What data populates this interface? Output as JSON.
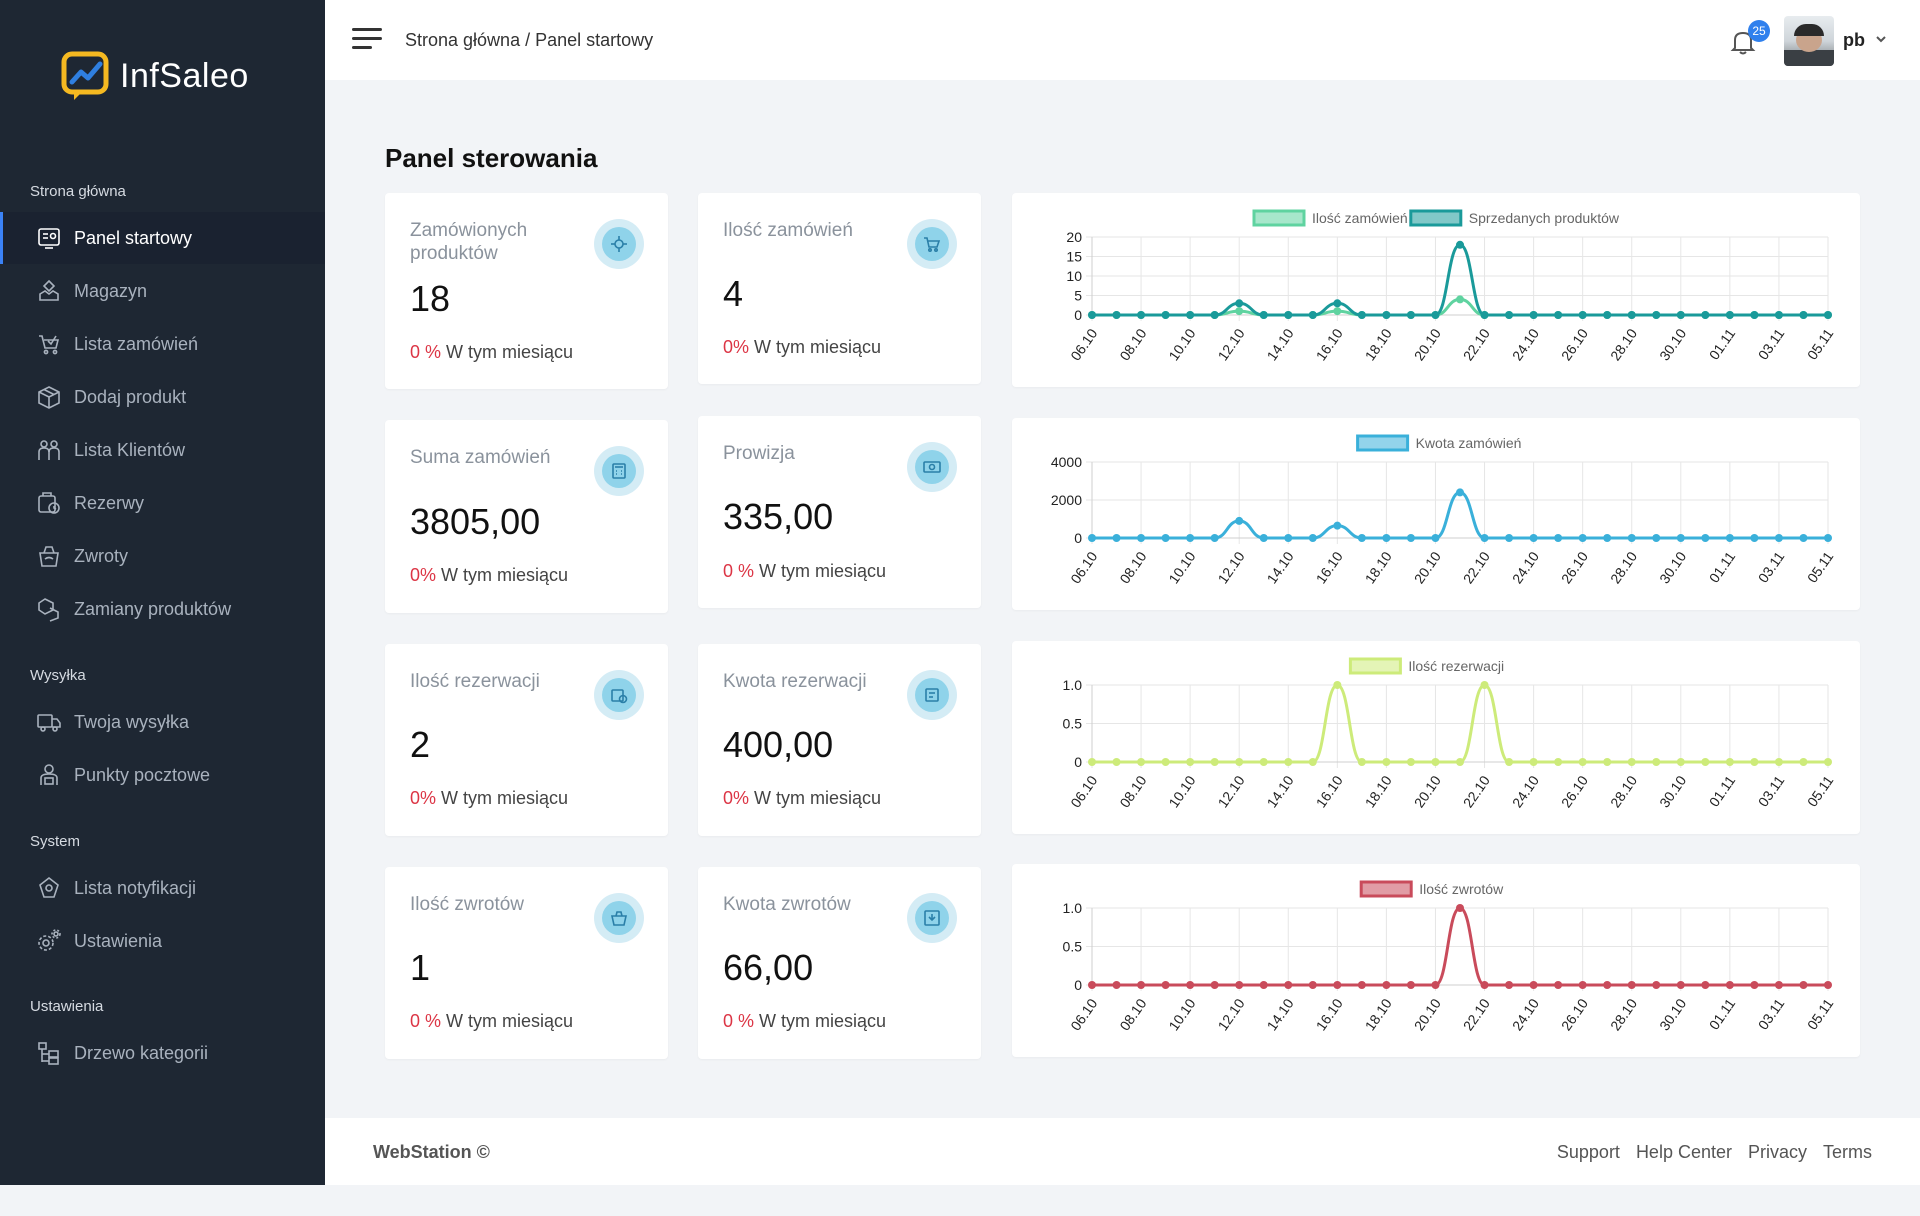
{
  "app": {
    "name": "InfSaleo"
  },
  "sidebar": {
    "sections": [
      {
        "label": "Strona główna"
      },
      {
        "label": "Wysyłka"
      },
      {
        "label": "System"
      },
      {
        "label": "Ustawienia"
      }
    ],
    "items": [
      {
        "label": "Panel startowy",
        "icon": "dashboard-icon",
        "active": true
      },
      {
        "label": "Magazyn",
        "icon": "warehouse-icon"
      },
      {
        "label": "Lista zamówień",
        "icon": "cart-icon"
      },
      {
        "label": "Dodaj produkt",
        "icon": "box-icon"
      },
      {
        "label": "Lista Klientów",
        "icon": "users-icon"
      },
      {
        "label": "Rezerwy",
        "icon": "reservation-icon"
      },
      {
        "label": "Zwroty",
        "icon": "returns-icon"
      },
      {
        "label": "Zamiany produktów",
        "icon": "swap-icon"
      },
      {
        "label": "Twoja wysyłka",
        "icon": "truck-icon"
      },
      {
        "label": "Punkty pocztowe",
        "icon": "postal-point-icon"
      },
      {
        "label": "Lista notyfikacji",
        "icon": "notification-list-icon"
      },
      {
        "label": "Ustawienia",
        "icon": "settings-icon"
      },
      {
        "label": "Drzewo kategorii",
        "icon": "category-tree-icon"
      }
    ]
  },
  "header": {
    "breadcrumb": "Strona główna / Panel startowy",
    "notifications_count": "25",
    "user_name": "pb"
  },
  "main": {
    "title": "Panel sterowania",
    "stats": [
      {
        "title": "Zamówionych produktów",
        "value": "18",
        "pct": "0 %",
        "sub": "W tym miesiącu",
        "icon": "target-icon"
      },
      {
        "title": "Ilość zamówień",
        "value": "4",
        "pct": "0%",
        "sub": "W tym miesiącu",
        "icon": "cart-icon"
      },
      {
        "title": "Suma zamówień",
        "value": "3805,00",
        "pct": "0%",
        "sub": "W tym miesiącu",
        "icon": "calculator-icon"
      },
      {
        "title": "Prowizja",
        "value": "335,00",
        "pct": "0 %",
        "sub": "W tym miesiącu",
        "icon": "money-icon"
      },
      {
        "title": "Ilość rezerwacji",
        "value": "2",
        "pct": "0%",
        "sub": "W tym miesiącu",
        "icon": "reservation-icon"
      },
      {
        "title": "Kwota rezerwacji",
        "value": "400,00",
        "pct": "0%",
        "sub": "W tym miesiącu",
        "icon": "receipt-icon"
      },
      {
        "title": "Ilość zwrotów",
        "value": "1",
        "pct": "0 %",
        "sub": "W tym miesiącu",
        "icon": "basket-icon"
      },
      {
        "title": "Kwota zwrotów",
        "value": "66,00",
        "pct": "0 %",
        "sub": "W tym miesiącu",
        "icon": "download-icon"
      }
    ]
  },
  "footer": {
    "brand": "WebStation ©",
    "links": [
      "Support",
      "Help Center",
      "Privacy",
      "Terms"
    ]
  },
  "chart_data": [
    {
      "type": "line",
      "categories": [
        "06.10",
        "07.10",
        "08.10",
        "09.10",
        "10.10",
        "11.10",
        "12.10",
        "13.10",
        "14.10",
        "15.10",
        "16.10",
        "17.10",
        "18.10",
        "19.10",
        "20.10",
        "21.10",
        "22.10",
        "23.10",
        "24.10",
        "25.10",
        "26.10",
        "27.10",
        "28.10",
        "29.10",
        "30.10",
        "31.10",
        "01.11",
        "02.11",
        "03.11",
        "04.11",
        "05.11"
      ],
      "tick_labels": [
        "06.10",
        "08.10",
        "10.10",
        "12.10",
        "14.10",
        "16.10",
        "18.10",
        "20.10",
        "22.10",
        "24.10",
        "26.10",
        "28.10",
        "30.10",
        "01.11",
        "03.11",
        "05.11"
      ],
      "series": [
        {
          "name": "Ilość zamówień",
          "color": "#5fd3a0",
          "values": [
            0,
            0,
            0,
            0,
            0,
            0,
            1,
            0,
            0,
            0,
            1,
            0,
            0,
            0,
            0,
            4,
            0,
            0,
            0,
            0,
            0,
            0,
            0,
            0,
            0,
            0,
            0,
            0,
            0,
            0,
            0
          ]
        },
        {
          "name": "Sprzedanych produktów",
          "color": "#1a9a9a",
          "values": [
            0,
            0,
            0,
            0,
            0,
            0,
            3,
            0,
            0,
            0,
            3,
            0,
            0,
            0,
            0,
            18,
            0,
            0,
            0,
            0,
            0,
            0,
            0,
            0,
            0,
            0,
            0,
            0,
            0,
            0,
            0
          ]
        }
      ],
      "yticks": [
        0,
        5,
        10,
        15,
        20
      ],
      "ylim": [
        0,
        20
      ],
      "legend": "top",
      "grid": true
    },
    {
      "type": "line",
      "categories": [
        "06.10",
        "07.10",
        "08.10",
        "09.10",
        "10.10",
        "11.10",
        "12.10",
        "13.10",
        "14.10",
        "15.10",
        "16.10",
        "17.10",
        "18.10",
        "19.10",
        "20.10",
        "21.10",
        "22.10",
        "23.10",
        "24.10",
        "25.10",
        "26.10",
        "27.10",
        "28.10",
        "29.10",
        "30.10",
        "31.10",
        "01.11",
        "02.11",
        "03.11",
        "04.11",
        "05.11"
      ],
      "tick_labels": [
        "06.10",
        "08.10",
        "10.10",
        "12.10",
        "14.10",
        "16.10",
        "18.10",
        "20.10",
        "22.10",
        "24.10",
        "26.10",
        "28.10",
        "30.10",
        "01.11",
        "03.11",
        "05.11"
      ],
      "series": [
        {
          "name": "Kwota zamówień",
          "color": "#3ab0da",
          "values": [
            0,
            0,
            0,
            0,
            0,
            0,
            900,
            0,
            0,
            0,
            650,
            0,
            0,
            0,
            0,
            2400,
            0,
            0,
            0,
            0,
            0,
            0,
            0,
            0,
            0,
            0,
            0,
            0,
            0,
            0,
            0
          ]
        }
      ],
      "yticks": [
        0,
        2000,
        4000
      ],
      "ylim": [
        0,
        4000
      ],
      "legend": "top",
      "grid": true
    },
    {
      "type": "line",
      "categories": [
        "06.10",
        "07.10",
        "08.10",
        "09.10",
        "10.10",
        "11.10",
        "12.10",
        "13.10",
        "14.10",
        "15.10",
        "16.10",
        "17.10",
        "18.10",
        "19.10",
        "20.10",
        "21.10",
        "22.10",
        "23.10",
        "24.10",
        "25.10",
        "26.10",
        "27.10",
        "28.10",
        "29.10",
        "30.10",
        "31.10",
        "01.11",
        "02.11",
        "03.11",
        "04.11",
        "05.11"
      ],
      "tick_labels": [
        "06.10",
        "08.10",
        "10.10",
        "12.10",
        "14.10",
        "16.10",
        "18.10",
        "20.10",
        "22.10",
        "24.10",
        "26.10",
        "28.10",
        "30.10",
        "01.11",
        "03.11",
        "05.11"
      ],
      "series": [
        {
          "name": "Ilość rezerwacji",
          "color": "#cdeb7a",
          "values": [
            0,
            0,
            0,
            0,
            0,
            0,
            0,
            0,
            0,
            0,
            1,
            0,
            0,
            0,
            0,
            0,
            1,
            0,
            0,
            0,
            0,
            0,
            0,
            0,
            0,
            0,
            0,
            0,
            0,
            0,
            0
          ]
        }
      ],
      "yticks": [
        0,
        0.5,
        1.0
      ],
      "ytick_labels": [
        "0",
        "0.5",
        "1.0"
      ],
      "ylim": [
        0,
        1
      ],
      "legend": "top",
      "grid": true
    },
    {
      "type": "line",
      "categories": [
        "06.10",
        "07.10",
        "08.10",
        "09.10",
        "10.10",
        "11.10",
        "12.10",
        "13.10",
        "14.10",
        "15.10",
        "16.10",
        "17.10",
        "18.10",
        "19.10",
        "20.10",
        "21.10",
        "22.10",
        "23.10",
        "24.10",
        "25.10",
        "26.10",
        "27.10",
        "28.10",
        "29.10",
        "30.10",
        "31.10",
        "01.11",
        "02.11",
        "03.11",
        "04.11",
        "05.11"
      ],
      "tick_labels": [
        "06.10",
        "08.10",
        "10.10",
        "12.10",
        "14.10",
        "16.10",
        "18.10",
        "20.10",
        "22.10",
        "24.10",
        "26.10",
        "28.10",
        "30.10",
        "01.11",
        "03.11",
        "05.11"
      ],
      "series": [
        {
          "name": "Ilość zwrotów",
          "color": "#c94b5b",
          "values": [
            0,
            0,
            0,
            0,
            0,
            0,
            0,
            0,
            0,
            0,
            0,
            0,
            0,
            0,
            0,
            1,
            0,
            0,
            0,
            0,
            0,
            0,
            0,
            0,
            0,
            0,
            0,
            0,
            0,
            0,
            0
          ]
        }
      ],
      "yticks": [
        0,
        0.5,
        1.0
      ],
      "ytick_labels": [
        "0",
        "0.5",
        "1.0"
      ],
      "ylim": [
        0,
        1
      ],
      "legend": "top",
      "grid": true
    }
  ]
}
